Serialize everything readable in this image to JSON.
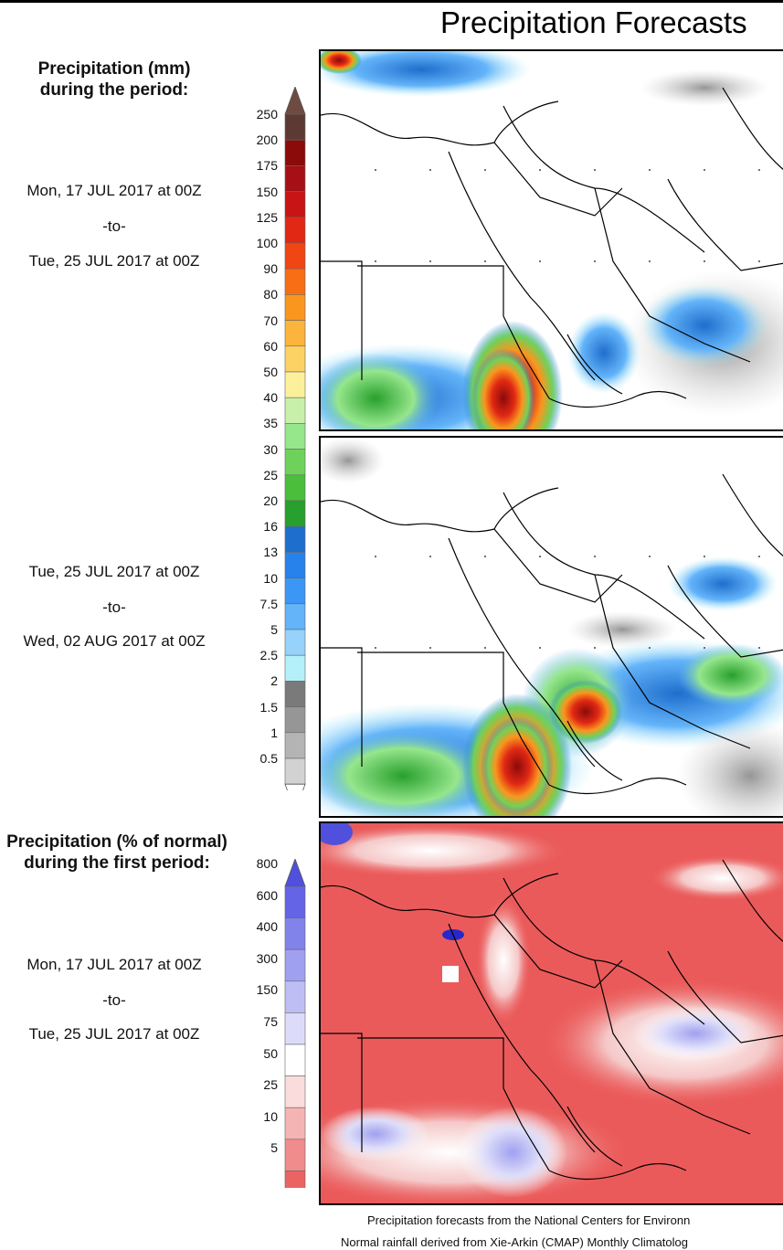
{
  "title": "Precipitation Forecasts",
  "amount_legend": {
    "heading_line1": "Precipitation (mm)",
    "heading_line2": "during the period:",
    "labels": [
      "250",
      "200",
      "175",
      "150",
      "125",
      "100",
      "90",
      "80",
      "70",
      "60",
      "50",
      "40",
      "35",
      "30",
      "25",
      "20",
      "16",
      "13",
      "10",
      "7.5",
      "5",
      "2.5",
      "2",
      "1.5",
      "1",
      "0.5"
    ],
    "colors": [
      "#5c3a33",
      "#8b0a0a",
      "#a50f15",
      "#c81414",
      "#e02814",
      "#f04614",
      "#f76e14",
      "#fa961e",
      "#fcb43c",
      "#fdd264",
      "#fdf09b",
      "#c8f0aa",
      "#96e68c",
      "#6ed25a",
      "#4bbe3c",
      "#28a02d",
      "#1e6ecd",
      "#2882eb",
      "#3c96f5",
      "#64b4fa",
      "#96d2fa",
      "#b4f0fa",
      "#7a7a7a",
      "#969696",
      "#b4b4b4",
      "#d2d2d2"
    ],
    "cap_top_color": "#6e4b41",
    "cap_bottom_color": "#ffffff"
  },
  "anomaly_legend": {
    "heading_line1": "Precipitation (% of normal)",
    "heading_line2": "during the first period:",
    "labels": [
      "800",
      "600",
      "400",
      "300",
      "150",
      "75",
      "50",
      "25",
      "10",
      "5"
    ],
    "colors": [
      "#6464e6",
      "#8282eb",
      "#a0a0f0",
      "#bebef5",
      "#dcdcfa",
      "#ffffff",
      "#fadcdc",
      "#f5b4b4",
      "#f08c8c",
      "#eb6464"
    ],
    "cap_top_color": "#5050dc",
    "cap_bottom_color": "#e63c3c"
  },
  "periods": [
    {
      "start": "Mon, 17 JUL 2017 at 00Z",
      "sep": "-to-",
      "end": "Tue, 25 JUL 2017 at 00Z"
    },
    {
      "start": "Tue, 25 JUL 2017 at 00Z",
      "sep": "-to-",
      "end": "Wed, 02 AUG 2017 at 00Z"
    },
    {
      "start": "Mon, 17 JUL 2017 at 00Z",
      "sep": "-to-",
      "end": "Tue, 25 JUL 2017 at 00Z"
    }
  ],
  "footer": {
    "line1": "Precipitation forecasts from the National Centers for Environn",
    "line2": "Normal rainfall derived from Xie-Arkin (CMAP) Monthly Climatolog"
  }
}
